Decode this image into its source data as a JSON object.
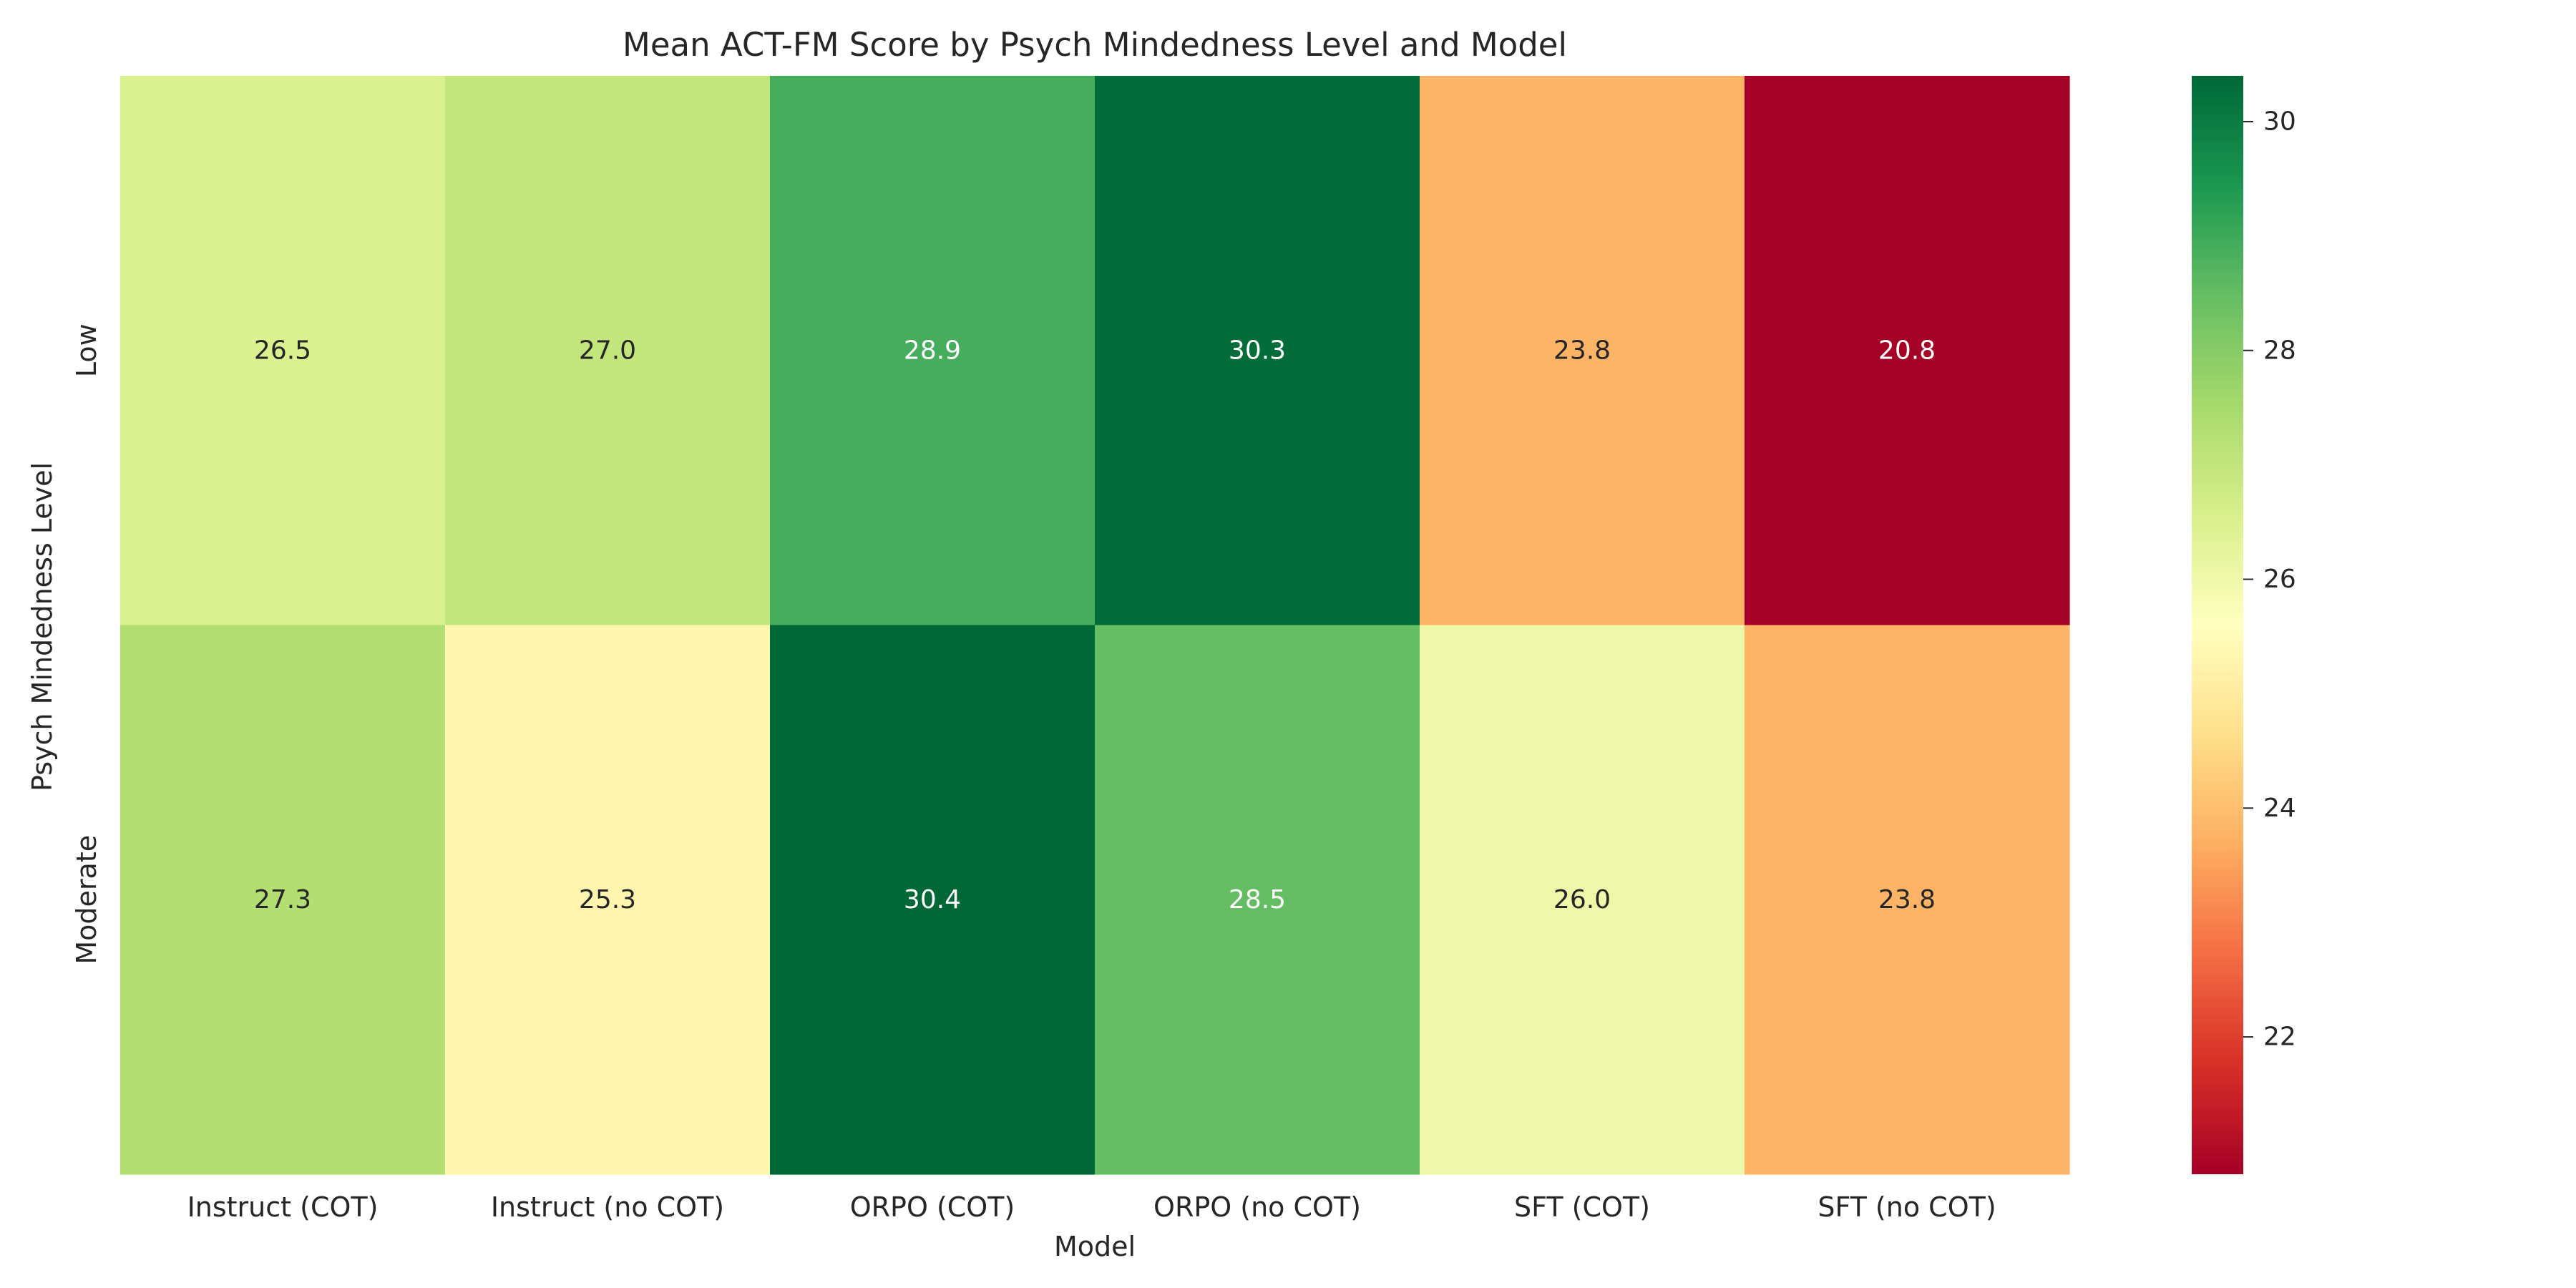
{
  "chart_data": {
    "type": "heatmap",
    "title": "Mean ACT-FM Score by Psych Mindedness Level and Model",
    "xlabel": "Model",
    "ylabel": "Psych Mindedness Level",
    "x_categories": [
      "Instruct (COT)",
      "Instruct (no COT)",
      "ORPO (COT)",
      "ORPO (no COT)",
      "SFT (COT)",
      "SFT (no COT)"
    ],
    "y_categories": [
      "Low",
      "Moderate"
    ],
    "values": [
      [
        26.5,
        27.0,
        28.9,
        30.3,
        23.8,
        20.8
      ],
      [
        27.3,
        25.3,
        30.4,
        28.5,
        26.0,
        23.8
      ]
    ],
    "value_format": "0.1f",
    "colormap": "RdYlGn",
    "colorbar": {
      "vmin": 20.8,
      "vmax": 30.4,
      "ticks": [
        22,
        24,
        26,
        28,
        30
      ]
    },
    "colors": {
      "label_dark": "#262626",
      "label_light": "#ffffff"
    }
  }
}
